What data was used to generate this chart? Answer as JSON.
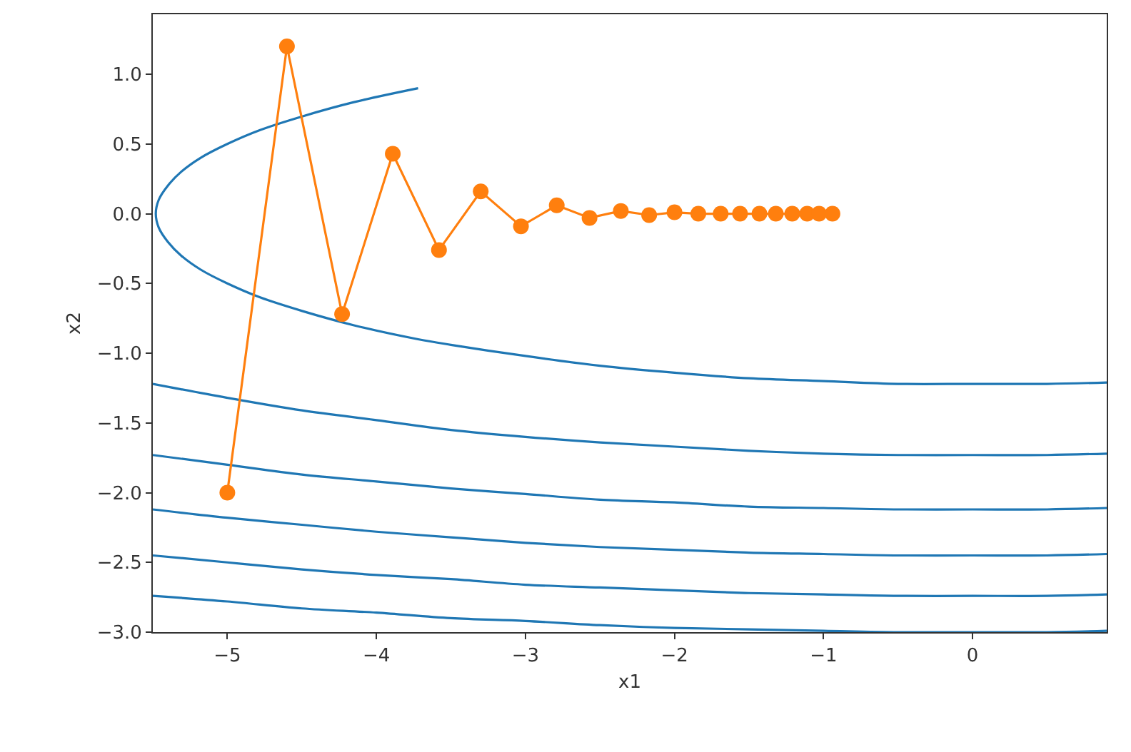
{
  "chart_data": {
    "type": "line",
    "xlabel": "x1",
    "ylabel": "x2",
    "xlim": [
      -5.5,
      0.9
    ],
    "xticks": [
      -5,
      -4,
      -3,
      -2,
      -1,
      0
    ],
    "ylim": [
      -3.0,
      1.43
    ],
    "yticks": [
      {
        "value": -3,
        "label": "−3.0"
      },
      {
        "value": -2.5,
        "label": "−2.5"
      },
      {
        "value": -2,
        "label": "−2.0"
      },
      {
        "value": -1.5,
        "label": "−1.5"
      },
      {
        "value": -1,
        "label": "−1.0"
      },
      {
        "value": -0.5,
        "label": "−0.5"
      },
      {
        "value": 0,
        "label": "0.0"
      },
      {
        "value": 0.5,
        "label": "0.5"
      },
      {
        "value": 1,
        "label": "1.0"
      }
    ],
    "series": [
      {
        "color": "#1f77b4",
        "marker": "none",
        "x": [
          -3.72,
          -4.15,
          -4.49,
          -4.78,
          -5.0,
          -5.18,
          -5.31,
          -5.4,
          -5.46,
          -5.48,
          -5.46,
          -5.4,
          -5.31,
          -5.18,
          -5.0,
          -4.78,
          -4.49,
          -4.15,
          -3.72,
          -3.5,
          -3.0,
          -2.5,
          -2.0,
          -1.5,
          -1.0,
          -0.5,
          0,
          0.5,
          0.9
        ],
        "values": [
          0.9,
          0.8,
          0.7,
          0.6,
          0.5,
          0.4,
          0.3,
          0.2,
          0.1,
          0,
          -0.1,
          -0.2,
          -0.3,
          -0.4,
          -0.5,
          -0.6,
          -0.7,
          -0.8,
          -0.9,
          -0.94,
          -1.02,
          -1.09,
          -1.14,
          -1.18,
          -1.2,
          -1.22,
          -1.22,
          -1.22,
          -1.21
        ]
      },
      {
        "color": "#1f77b4",
        "marker": "none",
        "x": [
          -5.5,
          -5,
          -4.5,
          -4,
          -3.5,
          -3,
          -2.5,
          -2,
          -1.5,
          -1,
          -0.5,
          0,
          0.5,
          0.9
        ],
        "values": [
          -1.22,
          -1.32,
          -1.41,
          -1.48,
          -1.55,
          -1.6,
          -1.64,
          -1.67,
          -1.7,
          -1.72,
          -1.73,
          -1.73,
          -1.73,
          -1.72
        ]
      },
      {
        "color": "#1f77b4",
        "marker": "none",
        "x": [
          -5.5,
          -5,
          -4.5,
          -4,
          -3.5,
          -3,
          -2.5,
          -2,
          -1.5,
          -1,
          -0.5,
          0,
          0.5,
          0.9
        ],
        "values": [
          -1.73,
          -1.8,
          -1.87,
          -1.92,
          -1.97,
          -2.01,
          -2.05,
          -2.07,
          -2.1,
          -2.11,
          -2.12,
          -2.12,
          -2.12,
          -2.11
        ]
      },
      {
        "color": "#1f77b4",
        "marker": "none",
        "x": [
          -5.5,
          -5,
          -4.5,
          -4,
          -3.5,
          -3,
          -2.5,
          -2,
          -1.5,
          -1,
          -0.5,
          0,
          0.5,
          0.9
        ],
        "values": [
          -2.12,
          -2.18,
          -2.23,
          -2.28,
          -2.32,
          -2.36,
          -2.39,
          -2.41,
          -2.43,
          -2.44,
          -2.45,
          -2.45,
          -2.45,
          -2.44
        ]
      },
      {
        "color": "#1f77b4",
        "marker": "none",
        "x": [
          -5.5,
          -5,
          -4.5,
          -4,
          -3.5,
          -3,
          -2.5,
          -2,
          -1.5,
          -1,
          -0.5,
          0,
          0.5,
          0.9
        ],
        "values": [
          -2.45,
          -2.5,
          -2.55,
          -2.59,
          -2.62,
          -2.66,
          -2.68,
          -2.7,
          -2.72,
          -2.73,
          -2.74,
          -2.74,
          -2.74,
          -2.73
        ]
      },
      {
        "color": "#1f77b4",
        "marker": "none",
        "x": [
          -5.5,
          -5,
          -4.5,
          -4,
          -3.5,
          -3,
          -2.5,
          -2,
          -1.5,
          -1,
          -0.5,
          0,
          0.5,
          0.9
        ],
        "values": [
          -2.74,
          -2.78,
          -2.83,
          -2.86,
          -2.9,
          -2.92,
          -2.95,
          -2.97,
          -2.98,
          -2.99,
          -3.0,
          -3.0,
          -3.0,
          -2.99
        ]
      },
      {
        "color": "#ff7f0e",
        "marker": "circle",
        "x": [
          -5,
          -4.6,
          -4.23,
          -3.89,
          -3.58,
          -3.3,
          -3.03,
          -2.79,
          -2.57,
          -2.36,
          -2.17,
          -2.0,
          -1.84,
          -1.69,
          -1.56,
          -1.43,
          -1.32,
          -1.21,
          -1.11,
          -1.03,
          -0.94
        ],
        "values": [
          -2,
          1.2,
          -0.72,
          0.43,
          -0.26,
          0.16,
          -0.09,
          0.06,
          -0.03,
          0.02,
          -0.01,
          0.01,
          0,
          0,
          0,
          0,
          0,
          0,
          0,
          0,
          0
        ]
      }
    ]
  }
}
